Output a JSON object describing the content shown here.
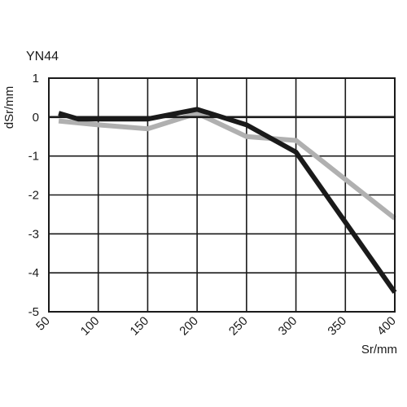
{
  "chart_data": {
    "type": "line",
    "title": "YN44",
    "xlabel": "Sr/mm",
    "ylabel": "dSr/mm",
    "xlim": [
      50,
      400
    ],
    "ylim": [
      -5,
      1
    ],
    "xticks": [
      "50",
      "100",
      "150",
      "200",
      "250",
      "300",
      "350",
      "400"
    ],
    "yticks": [
      "1",
      "0",
      "-1",
      "-2",
      "-3",
      "-4",
      "-5"
    ],
    "grid": true,
    "series": [
      {
        "color": "#1a1a1a",
        "x": [
          60,
          80,
          150,
          200,
          250,
          300,
          350,
          400
        ],
        "y": [
          0.1,
          -0.05,
          -0.05,
          0.2,
          -0.2,
          -0.9,
          -2.7,
          -4.5
        ]
      },
      {
        "color": "#b0b0b0",
        "x": [
          60,
          100,
          150,
          200,
          250,
          300,
          350,
          400
        ],
        "y": [
          -0.1,
          -0.2,
          -0.3,
          0.1,
          -0.5,
          -0.6,
          -1.6,
          -2.6
        ]
      }
    ]
  }
}
